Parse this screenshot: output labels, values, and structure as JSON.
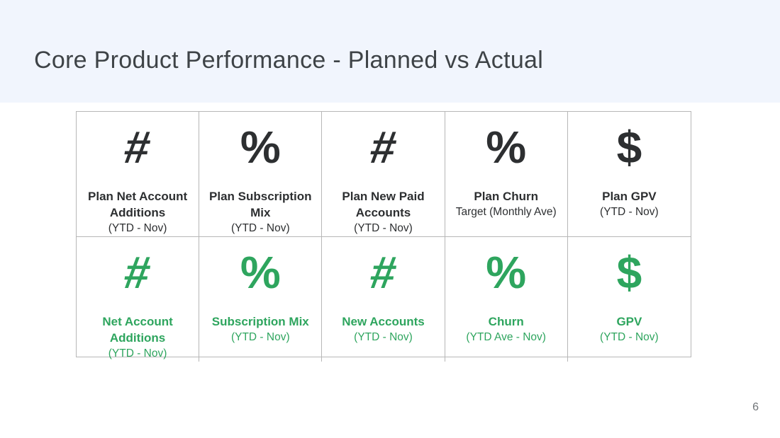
{
  "slide": {
    "title": "Core Product Performance - Planned vs Actual",
    "page_number": "6"
  },
  "colors": {
    "banner_bg": "#f1f5fd",
    "title_text": "#3e4347",
    "plan_color": "#2d2f31",
    "actual_color": "#2ea55e",
    "table_border": "#b7b7b7",
    "page_number_color": "#707478"
  },
  "table": {
    "rows": [
      {
        "name": "plan",
        "cells": [
          {
            "symbol": "#",
            "symbol_name": "hash-icon",
            "title": "Plan Net Account Additions",
            "subtitle": "(YTD - Nov)"
          },
          {
            "symbol": "%",
            "symbol_name": "percent-icon",
            "title": "Plan Subscription Mix",
            "subtitle": "(YTD - Nov)"
          },
          {
            "symbol": "#",
            "symbol_name": "hash-icon",
            "title": "Plan New Paid Accounts",
            "subtitle": "(YTD - Nov)"
          },
          {
            "symbol": "%",
            "symbol_name": "percent-icon",
            "title": "Plan Churn",
            "subtitle": "Target (Monthly Ave)"
          },
          {
            "symbol": "$",
            "symbol_name": "dollar-icon",
            "title": "Plan GPV",
            "subtitle": "(YTD - Nov)"
          }
        ]
      },
      {
        "name": "actual",
        "cells": [
          {
            "symbol": "#",
            "symbol_name": "hash-icon",
            "title": "Net Account Additions",
            "subtitle": "(YTD - Nov)"
          },
          {
            "symbol": "%",
            "symbol_name": "percent-icon",
            "title": "Subscription Mix",
            "subtitle": "(YTD - Nov)"
          },
          {
            "symbol": "#",
            "symbol_name": "hash-icon",
            "title": "New Accounts",
            "subtitle": "(YTD - Nov)"
          },
          {
            "symbol": "%",
            "symbol_name": "percent-icon",
            "title": "Churn",
            "subtitle": "(YTD Ave - Nov)"
          },
          {
            "symbol": "$",
            "symbol_name": "dollar-icon",
            "title": "GPV",
            "subtitle": "(YTD - Nov)"
          }
        ]
      }
    ]
  }
}
